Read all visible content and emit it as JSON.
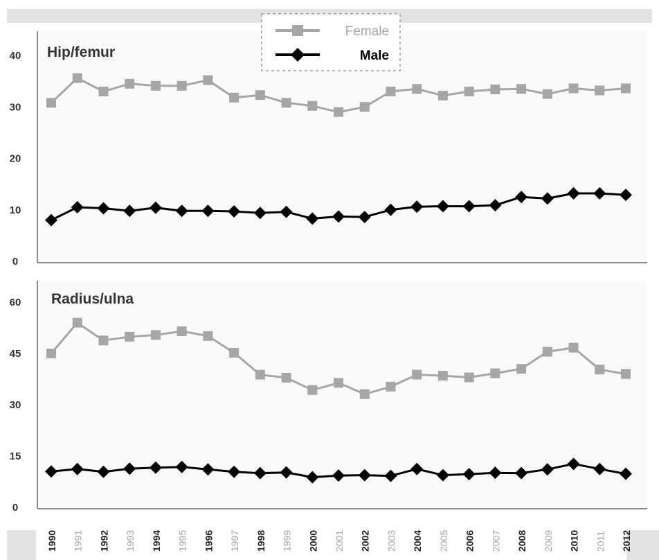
{
  "chart_data": [
    {
      "type": "line",
      "title": "Hip/femur",
      "ylim": [
        0,
        40
      ],
      "yticks": [
        0,
        10,
        20,
        30,
        40
      ],
      "categories": [
        "1990",
        "1991",
        "1992",
        "1993",
        "1994",
        "1995",
        "1996",
        "1997",
        "1998",
        "1999",
        "2000",
        "2001",
        "2002",
        "2003",
        "2004",
        "2005",
        "2006",
        "2007",
        "2008",
        "2009",
        "2010",
        "2011",
        "2012"
      ],
      "series": [
        {
          "name": "Female",
          "color": "#a6a6a6",
          "marker": "square",
          "values": [
            30.8,
            35.6,
            33.0,
            34.5,
            34.1,
            34.1,
            35.2,
            31.8,
            32.3,
            30.8,
            30.2,
            29.0,
            30.0,
            33.0,
            33.5,
            32.2,
            33.0,
            33.4,
            33.5,
            32.5,
            33.6,
            33.2,
            33.6
          ]
        },
        {
          "name": "Male",
          "color": "#000000",
          "marker": "diamond",
          "values": [
            8.0,
            10.5,
            10.3,
            9.8,
            10.4,
            9.8,
            9.8,
            9.7,
            9.4,
            9.6,
            8.3,
            8.7,
            8.6,
            10.0,
            10.6,
            10.7,
            10.7,
            10.9,
            12.5,
            12.2,
            13.2,
            13.2,
            12.9
          ]
        }
      ]
    },
    {
      "type": "line",
      "title": "Radius/ulna",
      "ylim": [
        0,
        60
      ],
      "yticks": [
        0,
        15,
        30,
        45,
        60
      ],
      "categories": [
        "1990",
        "1991",
        "1992",
        "1993",
        "1994",
        "1995",
        "1996",
        "1997",
        "1998",
        "1999",
        "2000",
        "2001",
        "2002",
        "2003",
        "2004",
        "2005",
        "2006",
        "2007",
        "2008",
        "2009",
        "2010",
        "2011",
        "2012"
      ],
      "series": [
        {
          "name": "Female",
          "color": "#a6a6a6",
          "marker": "square",
          "values": [
            45.0,
            54.0,
            48.8,
            49.9,
            50.4,
            51.5,
            50.1,
            45.2,
            38.8,
            37.9,
            34.3,
            36.4,
            33.1,
            35.3,
            38.8,
            38.5,
            38.0,
            39.2,
            40.5,
            45.5,
            46.7,
            40.3,
            39.0
          ]
        },
        {
          "name": "Male",
          "color": "#000000",
          "marker": "diamond",
          "values": [
            10.5,
            11.2,
            10.4,
            11.3,
            11.6,
            11.8,
            11.1,
            10.4,
            10.0,
            10.2,
            8.8,
            9.3,
            9.4,
            9.2,
            11.2,
            9.4,
            9.7,
            10.1,
            10.0,
            11.1,
            12.7,
            11.2,
            9.8
          ]
        }
      ]
    }
  ]
}
